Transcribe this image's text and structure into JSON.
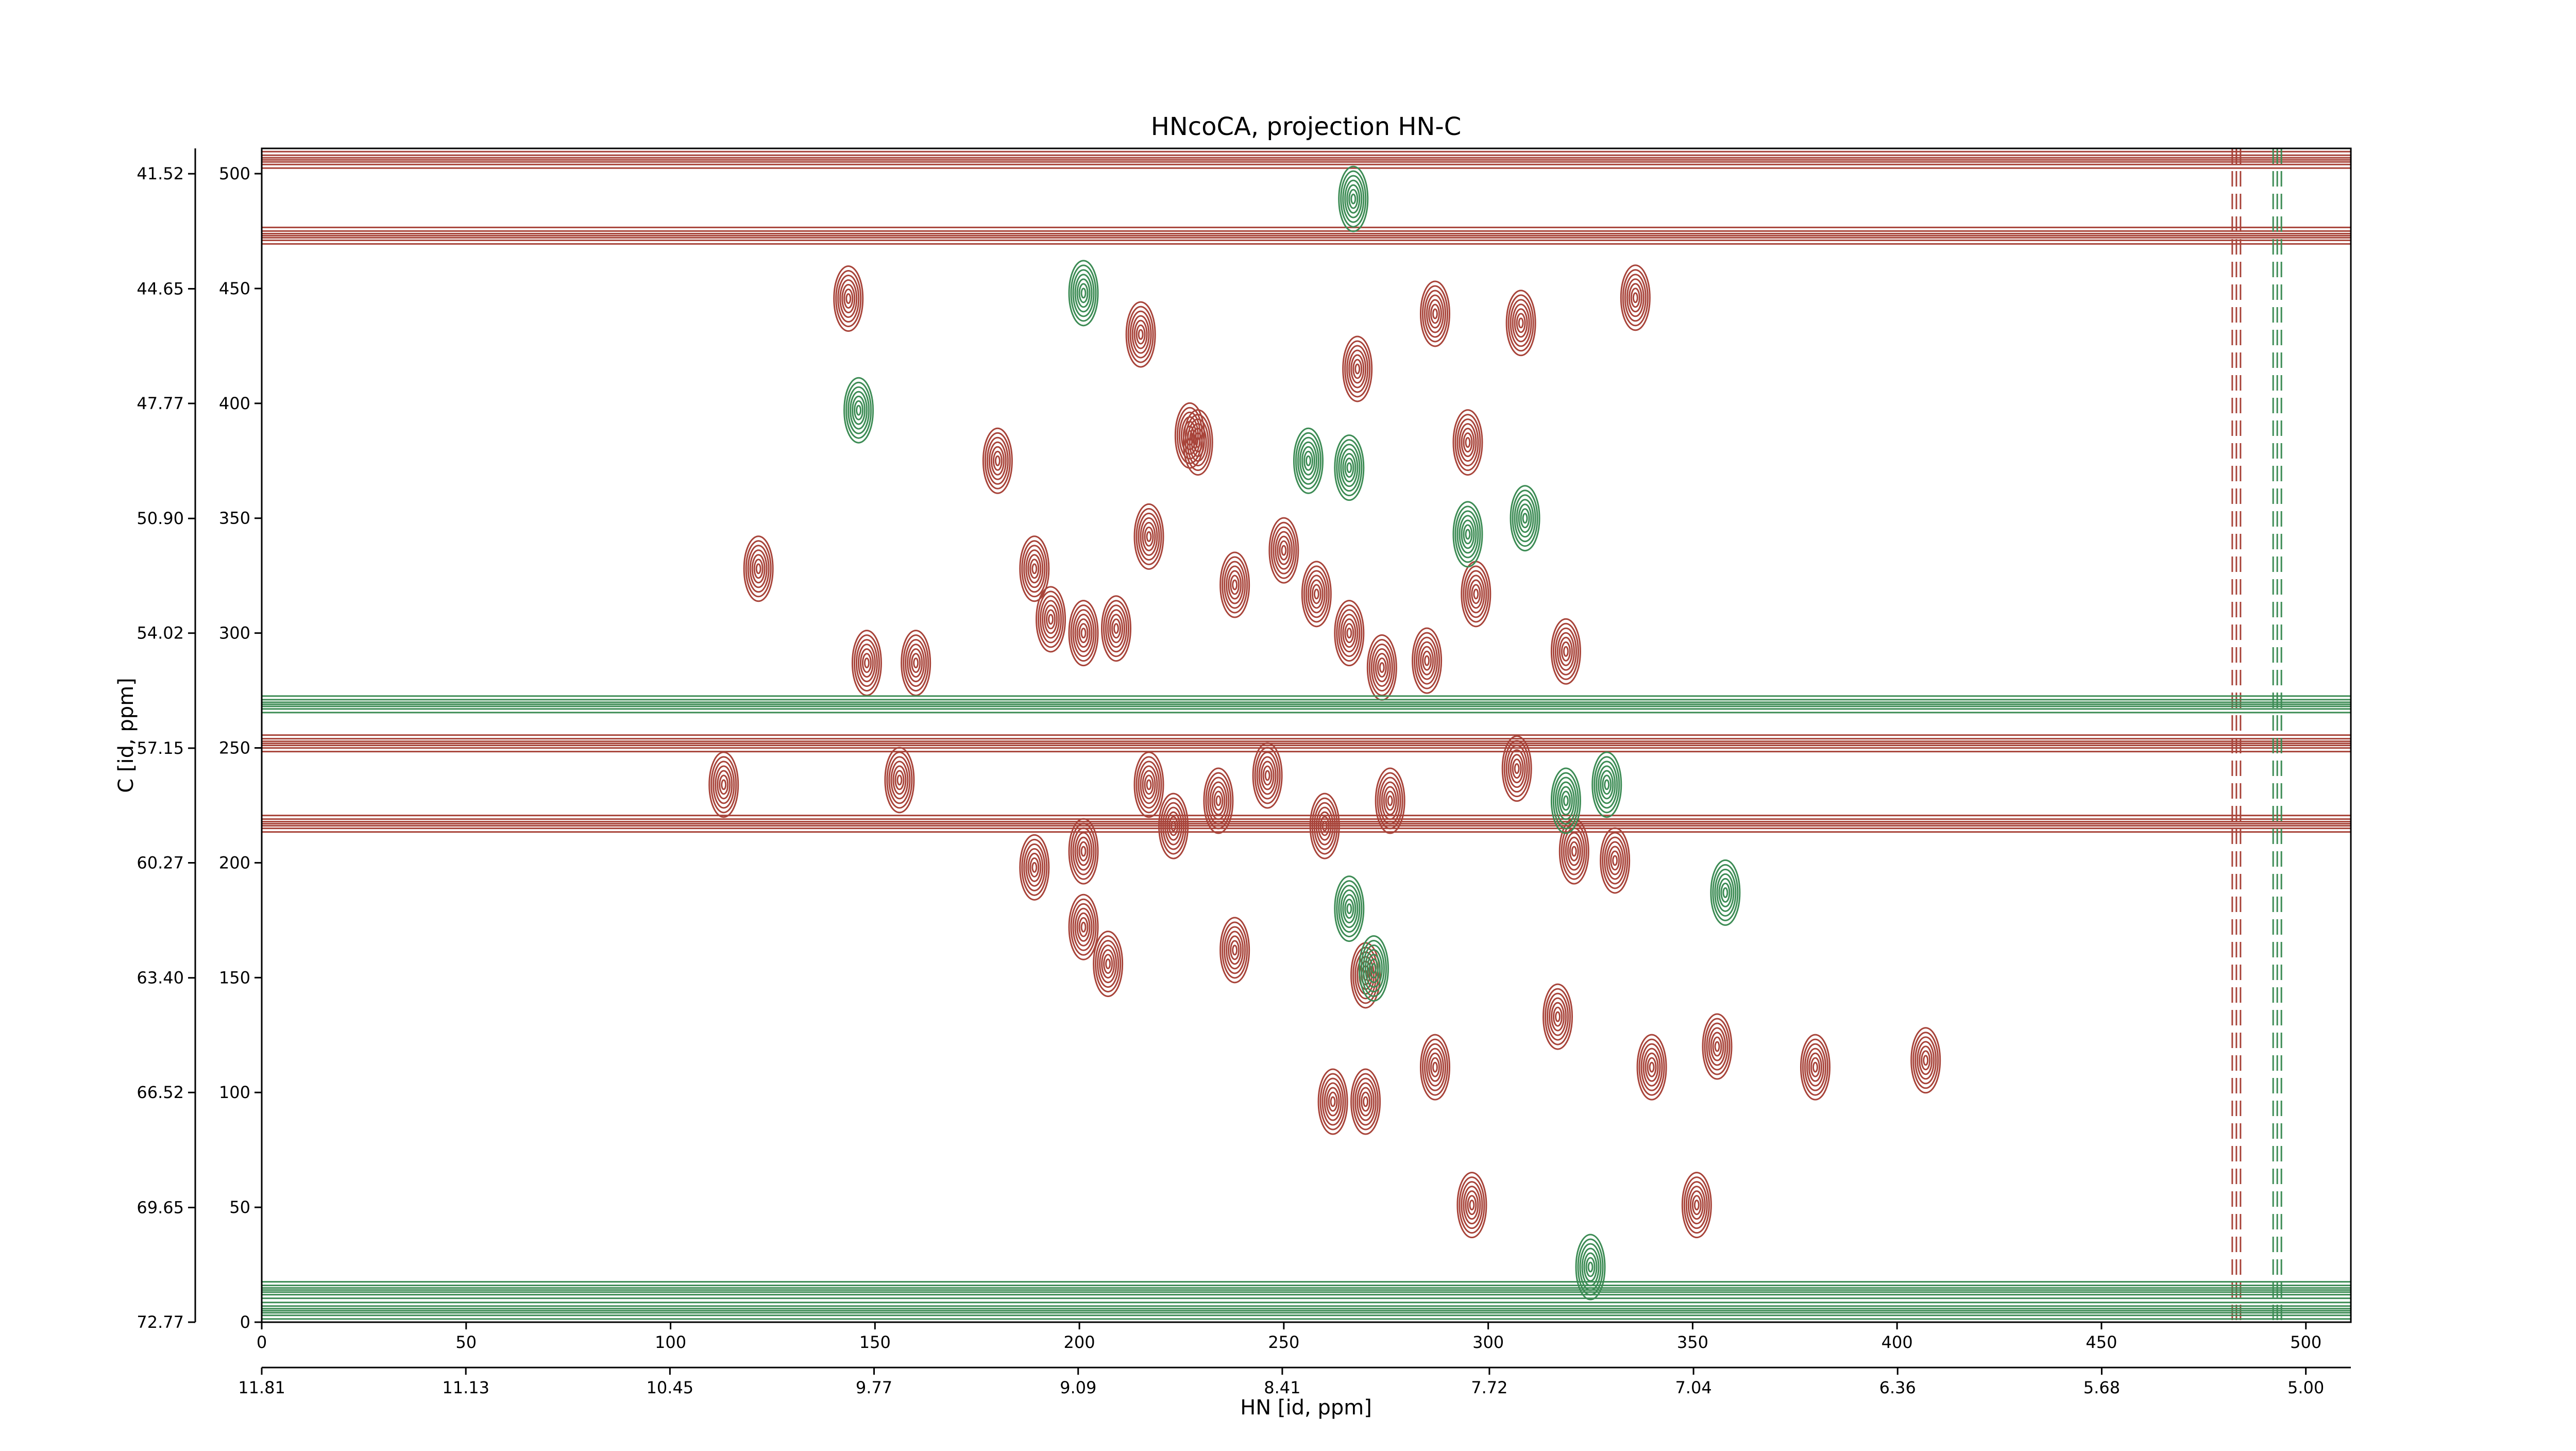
{
  "chart_data": {
    "type": "contour",
    "title": "HNcoCA, projection HN-C",
    "xlabel": "HN [id, ppm]",
    "ylabel": "C [id, ppm]",
    "xlim": [
      0,
      511
    ],
    "ylim": [
      0,
      511
    ],
    "xticks": [
      0,
      50,
      100,
      150,
      200,
      250,
      300,
      350,
      400,
      450,
      500
    ],
    "yticks": [
      0,
      50,
      100,
      150,
      200,
      250,
      300,
      350,
      400,
      450,
      500
    ],
    "x2lim": [
      11.81,
      4.85
    ],
    "x2ticks": [
      11.81,
      11.13,
      10.45,
      9.77,
      9.09,
      8.41,
      7.72,
      7.04,
      6.36,
      5.68,
      {
        "value": 5,
        "label": "5.00"
      }
    ],
    "y2lim": [
      72.77,
      40.83
    ],
    "y2ticks": [
      72.77,
      69.65,
      66.52,
      {
        "value": 63.4,
        "label": "63.40"
      },
      60.27,
      57.15,
      54.02,
      {
        "value": 50.9,
        "label": "50.90"
      },
      47.77,
      44.65,
      41.52
    ],
    "positive": {
      "color": "#a8443a",
      "x": [
        143.5,
        215,
        287,
        308,
        336,
        121.5,
        180,
        189,
        193,
        201,
        209,
        217,
        229,
        238,
        250,
        258,
        266,
        274,
        285,
        297,
        319,
        148,
        160,
        113,
        156,
        189,
        201,
        217,
        223,
        234,
        246,
        260,
        276,
        307,
        321,
        331,
        201,
        207,
        238,
        270,
        262,
        270,
        287,
        317,
        356,
        340,
        380,
        407,
        296,
        351,
        227,
        295,
        268
      ],
      "y": [
        445.6,
        430,
        439,
        435,
        446,
        328,
        375,
        328,
        306,
        300,
        302,
        342,
        383,
        321,
        336,
        317,
        300,
        285,
        288,
        317,
        292,
        287,
        287,
        234,
        236,
        198,
        205,
        234,
        216,
        227,
        238,
        216,
        227,
        241,
        205,
        201,
        172,
        156,
        162,
        151,
        96,
        96,
        111,
        133,
        120,
        111,
        111,
        114,
        51,
        51,
        386,
        383,
        415
      ],
      "ridges_y": [
        252,
        217,
        473,
        506
      ],
      "ridges_x": [
        483
      ]
    },
    "negative": {
      "color": "#3d8c55",
      "x": [
        267,
        146,
        201,
        256,
        266,
        295,
        309,
        358,
        266,
        319,
        329,
        272,
        325
      ],
      "y": [
        489,
        397,
        448,
        375,
        372,
        343,
        350,
        187,
        180,
        227,
        234,
        154,
        24
      ],
      "ridges_y": [
        269,
        14,
        5
      ],
      "ridges_x": [
        493
      ]
    }
  }
}
